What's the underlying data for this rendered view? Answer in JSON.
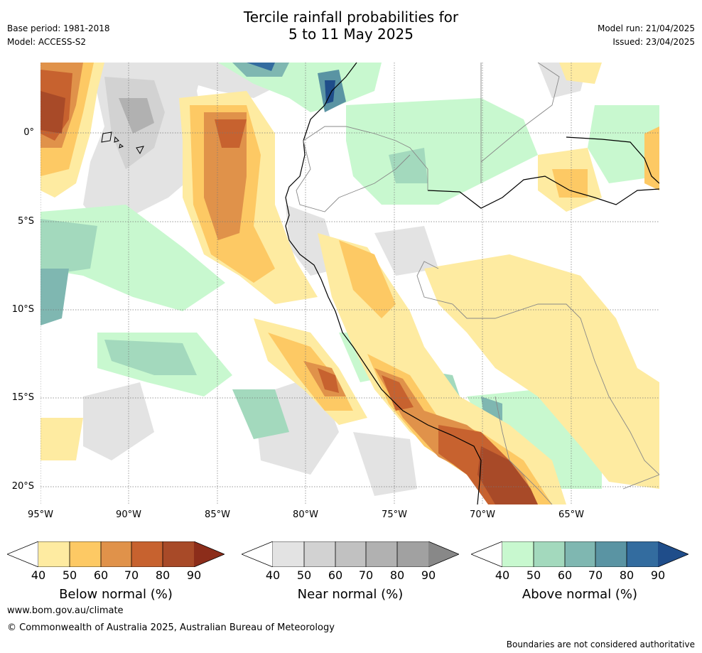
{
  "header": {
    "title_line1": "Tercile rainfall probabilities for",
    "title_line2": "5 to 11 May 2025",
    "base_period": "Base period: 1981-2018",
    "model": "Model: ACCESS-S2",
    "model_run": "Model run: 21/04/2025",
    "issued": "Issued: 23/04/2025"
  },
  "map": {
    "lat_labels": [
      "0°",
      "5°S",
      "10°S",
      "15°S",
      "20°S"
    ],
    "lon_labels": [
      "95°W",
      "90°W",
      "85°W",
      "80°W",
      "75°W",
      "70°W",
      "65°W"
    ],
    "lat_range": [
      -21,
      4
    ],
    "lon_range": [
      -95,
      -60
    ]
  },
  "colorbars": [
    {
      "title": "Below normal (%)",
      "ticks": [
        "40",
        "50",
        "60",
        "70",
        "80",
        "90"
      ],
      "colors": [
        "#feeba1",
        "#fdc964",
        "#e0924a",
        "#c7622f",
        "#a84a28",
        "#8c2d1a"
      ]
    },
    {
      "title": "Near normal (%)",
      "ticks": [
        "40",
        "50",
        "60",
        "70",
        "80",
        "90"
      ],
      "colors": [
        "#e3e3e3",
        "#d2d2d2",
        "#c1c1c1",
        "#b1b1b1",
        "#a1a1a1",
        "#888888"
      ]
    },
    {
      "title": "Above normal (%)",
      "ticks": [
        "40",
        "50",
        "60",
        "70",
        "80",
        "90"
      ],
      "colors": [
        "#c8f8cf",
        "#a3d9bd",
        "#7fb7b1",
        "#5a94a3",
        "#336c9f",
        "#1f4d8a"
      ]
    }
  ],
  "footer": {
    "website": "www.bom.gov.au/climate",
    "copyright": "© Commonwealth of Australia 2025, Australian Bureau of Meteorology",
    "disclaimer": "Boundaries are not considered authoritative"
  }
}
